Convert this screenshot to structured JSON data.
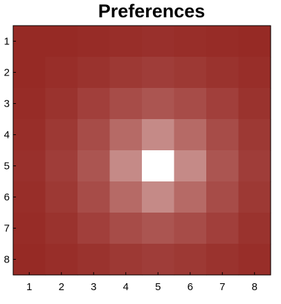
{
  "chart_data": {
    "type": "heatmap",
    "title": "Preferences",
    "x_categories": [
      "1",
      "2",
      "3",
      "4",
      "5",
      "6",
      "7",
      "8"
    ],
    "y_categories": [
      "1",
      "2",
      "3",
      "4",
      "5",
      "6",
      "7",
      "8"
    ],
    "values": [
      [
        0.0,
        0.0,
        0.01,
        0.02,
        0.03,
        0.02,
        0.01,
        0.0
      ],
      [
        0.0,
        0.02,
        0.04,
        0.07,
        0.09,
        0.07,
        0.04,
        0.02
      ],
      [
        0.01,
        0.04,
        0.1,
        0.16,
        0.2,
        0.16,
        0.1,
        0.04
      ],
      [
        0.02,
        0.07,
        0.16,
        0.3,
        0.45,
        0.3,
        0.16,
        0.07
      ],
      [
        0.03,
        0.09,
        0.2,
        0.45,
        1.0,
        0.45,
        0.2,
        0.09
      ],
      [
        0.02,
        0.07,
        0.16,
        0.3,
        0.45,
        0.3,
        0.16,
        0.07
      ],
      [
        0.01,
        0.04,
        0.1,
        0.16,
        0.2,
        0.16,
        0.1,
        0.04
      ],
      [
        0.0,
        0.02,
        0.04,
        0.07,
        0.09,
        0.07,
        0.04,
        0.02
      ]
    ],
    "value_range": [
      0,
      1
    ],
    "colormap": {
      "low": "#962a25",
      "high": "#ffffff"
    },
    "xlabel": "",
    "ylabel": "",
    "grid": false,
    "legend": "none"
  }
}
